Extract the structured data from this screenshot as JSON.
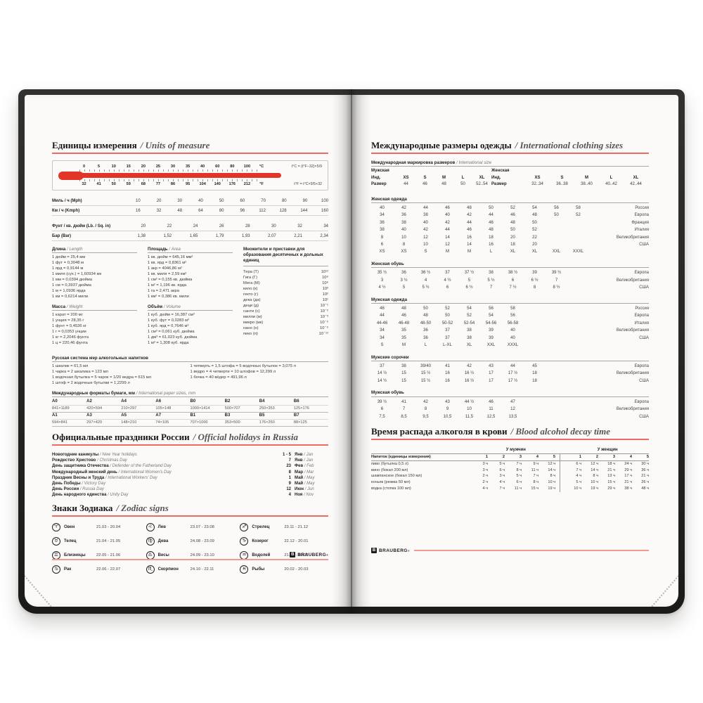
{
  "brand": {
    "name": "BRAUBERG",
    "mark": "B",
    "reg": "®"
  },
  "left_page": {
    "units": {
      "title_ru": "Единицы измерения",
      "title_en": "/ Units of measure",
      "thermometer": {
        "c_values": [
          "0",
          "5",
          "10",
          "15",
          "20",
          "25",
          "30",
          "35",
          "40",
          "60",
          "80",
          "100"
        ],
        "c_unit": "°C",
        "c_formula": "t°C = (t°F−32)×5/9",
        "f_values": [
          "32",
          "41",
          "50",
          "59",
          "68",
          "77",
          "86",
          "95",
          "104",
          "140",
          "176",
          "212"
        ],
        "f_unit": "°F",
        "f_formula": "t°F = t°C×9/5+32"
      },
      "speed_table": [
        {
          "label": "Миль / ч (Mph)",
          "values": [
            "10",
            "20",
            "30",
            "40",
            "50",
            "60",
            "70",
            "80",
            "90",
            "100"
          ]
        },
        {
          "label": "Км / ч (Kmph)",
          "values": [
            "16",
            "32",
            "48",
            "64",
            "80",
            "96",
            "112",
            "128",
            "144",
            "160"
          ]
        }
      ],
      "pressure_table": [
        {
          "label": "Фунт / кв. дюйм (Lb. / Sq. in)",
          "values": [
            "20",
            "22",
            "24",
            "26",
            "28",
            "30",
            "32",
            "34"
          ]
        },
        {
          "label": "Бар (Bar)",
          "values": [
            "1,38",
            "1,52",
            "1,65",
            "1,79",
            "1,93",
            "2,07",
            "2,21",
            "2,34"
          ]
        }
      ],
      "length": {
        "title_ru": "Длина",
        "title_en": "/ Length",
        "items": [
          "1 дюйм = 25,4 мм",
          "1 фут = 0,3048 м",
          "1 ярд = 0,9144 м",
          "1 миля (сух.) = 1,60934 км",
          "1 мм = 0,0394 дюйма",
          "1 см = 0,3937 дюйма",
          "1 м = 1,0936 ярда",
          "1 км = 0,6214 мили"
        ]
      },
      "area": {
        "title_ru": "Площадь",
        "title_en": "/ Area",
        "items": [
          "1 кв. дюйм = 645,16 мм²",
          "1 кв. ярд = 0,8361 м²",
          "1 акр = 4046,86 м²",
          "1 кв. миля = 2,59 км²",
          "1 см² = 0,155 кв. дюйма",
          "1 м² = 1,196 кв. ярда",
          "1 га = 2,471 акра",
          "1 км² = 0,386 кв. мили"
        ]
      },
      "weight": {
        "title_ru": "Масса",
        "title_en": "/ Weight",
        "items": [
          "1 карат = 200 мг",
          "1 унция = 28,35 г",
          "1 фунт = 0,4536 кг",
          "1 г = 0,0353 унции",
          "1 кг = 2,2046 фунта",
          "1 ц = 220,46 фунта"
        ]
      },
      "volume": {
        "title_ru": "Объём",
        "title_en": "/ Volume",
        "items": [
          "1 куб. дюйм = 16,387 см³",
          "1 куб. фут = 0,0283 м³",
          "1 куб. ярд = 0,7646 м³",
          "1 см³ = 0,061 куб. дюйма",
          "1 дм³ = 61,023 куб. дюйма",
          "1 м³ = 1,308 куб. ярда"
        ]
      },
      "prefixes": {
        "title": "Множители и приставки для образования десятичных и дольных единиц",
        "items": [
          {
            "n": "Тера (Т)",
            "v": "10¹²"
          },
          {
            "n": "Гига (Г)",
            "v": "10⁹"
          },
          {
            "n": "Мега (М)",
            "v": "10⁶"
          },
          {
            "n": "кило (к)",
            "v": "10³"
          },
          {
            "n": "гекто (г)",
            "v": "10²"
          },
          {
            "n": "дека (да)",
            "v": "10¹"
          },
          {
            "n": "деци (д)",
            "v": "10⁻¹"
          },
          {
            "n": "санти (с)",
            "v": "10⁻²"
          },
          {
            "n": "милли (м)",
            "v": "10⁻³"
          },
          {
            "n": "микро (мк)",
            "v": "10⁻⁶"
          },
          {
            "n": "нано (н)",
            "v": "10⁻⁹"
          },
          {
            "n": "пико (п)",
            "v": "10⁻¹²"
          }
        ]
      },
      "russian_measures": {
        "title": "Русская система мер алкогольных напитков",
        "col1": [
          "1 шкалик = 61,5 мл",
          "1 чарка = 2 шкалика = 123 мл",
          "1 водочная бутылка = 5 чарок = 1/20 ведра = 615 мл",
          "1 штоф = 2 водочные бутылки = 1,2299 л"
        ],
        "col2": [
          "1 четверть = 1,5 штофа = 5 водочных бутылок = 3,075 л",
          "1 ведро = 4 четверти = 10 штофов = 12,299 л",
          "1 бочка = 40 вёдер = 491,96 л"
        ]
      },
      "paper": {
        "title_ru": "Международные форматы бумаги, мм",
        "title_en": "/ International paper sizes, mm",
        "rows": [
          [
            {
              "n": "A0",
              "s": "841×1189"
            },
            {
              "n": "A2",
              "s": "420×594"
            },
            {
              "n": "A4",
              "s": "210×297"
            },
            {
              "n": "A6",
              "s": "105×148"
            },
            {
              "n": "B0",
              "s": "1000×1414"
            },
            {
              "n": "B2",
              "s": "500×707"
            },
            {
              "n": "B4",
              "s": "250×353"
            },
            {
              "n": "B6",
              "s": "125×176"
            }
          ],
          [
            {
              "n": "A1",
              "s": "594×841"
            },
            {
              "n": "A3",
              "s": "297×420"
            },
            {
              "n": "A5",
              "s": "148×210"
            },
            {
              "n": "A7",
              "s": "74×105"
            },
            {
              "n": "B1",
              "s": "707×1000"
            },
            {
              "n": "B3",
              "s": "353×500"
            },
            {
              "n": "B5",
              "s": "176×250"
            },
            {
              "n": "B7",
              "s": "88×125"
            }
          ]
        ]
      }
    },
    "holidays": {
      "title_ru": "Официальные праздники России",
      "title_en": "/ Official holidays in Russia",
      "items": [
        {
          "ru": "Новогодние каникулы",
          "en": "/ New Year holidays",
          "date": "1 - 5",
          "m_ru": "Янв",
          "m_en": "/ Jan"
        },
        {
          "ru": "Рождество Христово",
          "en": "/ Christmas Day",
          "date": "7",
          "m_ru": "Янв",
          "m_en": "/ Jan"
        },
        {
          "ru": "День защитника Отечества",
          "en": "/ Defender of the Fatherland Day",
          "date": "23",
          "m_ru": "Фев",
          "m_en": "/ Feb"
        },
        {
          "ru": "Международный женский день",
          "en": "/ International Women's Day",
          "date": "8",
          "m_ru": "Мар",
          "m_en": "/ Mar"
        },
        {
          "ru": "Праздник Весны и Труда",
          "en": "/ International Workers' Day",
          "date": "1",
          "m_ru": "Май",
          "m_en": "/ May"
        },
        {
          "ru": "День Победы",
          "en": "/ Victory Day",
          "date": "9",
          "m_ru": "Май",
          "m_en": "/ May"
        },
        {
          "ru": "День России",
          "en": "/ Russia Day",
          "date": "12",
          "m_ru": "Июн",
          "m_en": "/ Jun"
        },
        {
          "ru": "День народного единства",
          "en": "/ Unity Day",
          "date": "4",
          "m_ru": "Ноя",
          "m_en": "/ Nov"
        }
      ]
    },
    "zodiac": {
      "title_ru": "Знаки Зодиака",
      "title_en": "/ Zodiac signs",
      "entries": [
        {
          "symbol": "♈",
          "name": "Овен",
          "dates": "21.03 - 20.04"
        },
        {
          "symbol": "♌",
          "name": "Лев",
          "dates": "23.07 - 23.08"
        },
        {
          "symbol": "♐",
          "name": "Стрелец",
          "dates": "23.11 - 21.12"
        },
        {
          "symbol": "♉",
          "name": "Телец",
          "dates": "21.04 - 21.05"
        },
        {
          "symbol": "♍",
          "name": "Дева",
          "dates": "24.08 - 23.09"
        },
        {
          "symbol": "♑",
          "name": "Козерог",
          "dates": "22.12 - 20.01"
        },
        {
          "symbol": "♊",
          "name": "Близнецы",
          "dates": "22.05 - 21.06"
        },
        {
          "symbol": "♎",
          "name": "Весы",
          "dates": "24.09 - 23.10"
        },
        {
          "symbol": "♒",
          "name": "Водолей",
          "dates": "21.01 - 19.02"
        },
        {
          "symbol": "♋",
          "name": "Рак",
          "dates": "22.06 - 22.07"
        },
        {
          "symbol": "♏",
          "name": "Скорпион",
          "dates": "24.10 - 22.11"
        },
        {
          "symbol": "♓",
          "name": "Рыбы",
          "dates": "20.02 - 20.03"
        }
      ]
    }
  },
  "right_page": {
    "sizes_title_ru": "Международные размеры одежды",
    "sizes_title_en": "/ International clothing sizes",
    "marking": {
      "title_ru": "Международная маркировка размеров",
      "title_en": "/ International size",
      "men": {
        "header": "Мужская",
        "ind_label": "Инд.",
        "ind": [
          "XS",
          "S",
          "M",
          "L",
          "XL"
        ],
        "size_label": "Размер",
        "sizes": [
          "44",
          "46",
          "48",
          "50",
          "52..54"
        ]
      },
      "women": {
        "header": "Женская",
        "ind_label": "Инд.",
        "ind": [
          "XS",
          "S",
          "M",
          "L",
          "XL"
        ],
        "size_label": "Размер",
        "sizes": [
          "32..34",
          "36..38",
          "38..40",
          "40..42",
          "42..44"
        ]
      }
    },
    "size_tables": [
      {
        "title": "Женская одежда",
        "rows": [
          {
            "cells": [
              "40",
              "42",
              "44",
              "46",
              "48",
              "50",
              "52",
              "54",
              "56",
              "58"
            ],
            "label": "Россия"
          },
          {
            "cells": [
              "34",
              "36",
              "38",
              "40",
              "42",
              "44",
              "46",
              "48",
              "50",
              "52"
            ],
            "label": "Европа"
          },
          {
            "cells": [
              "36",
              "38",
              "40",
              "42",
              "44",
              "46",
              "48",
              "50"
            ],
            "label": "Франция"
          },
          {
            "cells": [
              "38",
              "40",
              "42",
              "44",
              "46",
              "48",
              "50",
              "52"
            ],
            "label": "Италия"
          },
          {
            "cells": [
              "8",
              "10",
              "12",
              "14",
              "16",
              "18",
              "20",
              "22"
            ],
            "label": "Великобритания"
          },
          {
            "cells": [
              "6",
              "8",
              "10",
              "12",
              "14",
              "16",
              "18",
              "20"
            ],
            "label": "США"
          },
          {
            "cells": [
              "XS",
              "XS",
              "S",
              "M",
              "M",
              "L",
              "XL",
              "XL",
              "XXL",
              "XXXL"
            ],
            "label": ""
          }
        ]
      },
      {
        "title": "Женская обувь",
        "rows": [
          {
            "cells": [
              "35 ½",
              "36",
              "36 ½",
              "37",
              "37 ½",
              "38",
              "38 ½",
              "39",
              "39 ½"
            ],
            "label": "Европа"
          },
          {
            "cells": [
              "3",
              "3 ½",
              "4",
              "4 ½",
              "5",
              "5 ½",
              "6",
              "6 ½",
              "7"
            ],
            "label": "Великобритания"
          },
          {
            "cells": [
              "4 ½",
              "5",
              "5 ½",
              "6",
              "6 ½",
              "7",
              "7 ½",
              "8",
              "8 ½"
            ],
            "label": "США"
          }
        ]
      },
      {
        "title": "Мужская одежда",
        "rows": [
          {
            "cells": [
              "46",
              "48",
              "50",
              "52",
              "54",
              "56",
              "58"
            ],
            "label": "Россия"
          },
          {
            "cells": [
              "44",
              "46",
              "48",
              "50",
              "52",
              "54",
              "56"
            ],
            "label": "Европа"
          },
          {
            "cells": [
              "44-46",
              "46-48",
              "48-50",
              "50-52",
              "52-54",
              "54-56",
              "56-58"
            ],
            "label": "Италия"
          },
          {
            "cells": [
              "34",
              "35",
              "36",
              "37",
              "38",
              "39",
              "40"
            ],
            "label": "Великобритания"
          },
          {
            "cells": [
              "34",
              "35",
              "36",
              "37",
              "38",
              "39",
              "40"
            ],
            "label": "США"
          },
          {
            "cells": [
              "S",
              "M",
              "L",
              "L-XL",
              "XL",
              "XXL",
              "XXXL"
            ],
            "label": ""
          }
        ]
      },
      {
        "title": "Мужские сорочки",
        "rows": [
          {
            "cells": [
              "37",
              "38",
              "39/40",
              "41",
              "42",
              "43",
              "44",
              "45"
            ],
            "label": "Европа"
          },
          {
            "cells": [
              "14 ½",
              "15",
              "15 ½",
              "16",
              "16 ½",
              "17",
              "17 ½",
              "18"
            ],
            "label": "Великобритания"
          },
          {
            "cells": [
              "14 ½",
              "15",
              "15 ½",
              "16",
              "16 ½",
              "17",
              "17 ½",
              "18"
            ],
            "label": "США"
          }
        ]
      },
      {
        "title": "Мужская обувь",
        "rows": [
          {
            "cells": [
              "39 ½",
              "41",
              "42",
              "43",
              "44 ½",
              "46",
              "47"
            ],
            "label": "Европа"
          },
          {
            "cells": [
              "6",
              "7",
              "8",
              "9",
              "10",
              "11",
              "12"
            ],
            "label": "Великобритания"
          },
          {
            "cells": [
              "7,5",
              "8,5",
              "9,5",
              "10,5",
              "11,5",
              "12,5",
              "13,5"
            ],
            "label": "США"
          }
        ]
      }
    ],
    "alcohol": {
      "title_ru": "Время распада алкоголя в крови",
      "title_en": "/ Blood alcohol decay time",
      "men_header": "У мужчин",
      "women_header": "У женщин",
      "drink_header": "Напиток (единицы измерения)",
      "count_cols": [
        "1",
        "2",
        "3",
        "4",
        "5"
      ],
      "rows": [
        {
          "drink": "пиво (бутылка 0,5 л)",
          "men": [
            "3 ч",
            "5 ч",
            "7 ч",
            "9 ч",
            "12 ч"
          ],
          "women": [
            "6 ч",
            "12 ч",
            "18 ч",
            "24 ч",
            "30 ч"
          ]
        },
        {
          "drink": "вино (бокал 200 мл)",
          "men": [
            "3 ч",
            "6 ч",
            "8 ч",
            "11 ч",
            "14 ч"
          ],
          "women": [
            "7 ч",
            "14 ч",
            "21 ч",
            "29 ч",
            "36 ч"
          ]
        },
        {
          "drink": "шампанское (бокал 150 мл)",
          "men": [
            "2 ч",
            "3 ч",
            "5 ч",
            "7 ч",
            "8 ч"
          ],
          "women": [
            "4 ч",
            "8 ч",
            "13 ч",
            "17 ч",
            "21 ч"
          ]
        },
        {
          "drink": "коньяк (рюмка 50 мл)",
          "men": [
            "2 ч",
            "4 ч",
            "6 ч",
            "8 ч",
            "10 ч"
          ],
          "women": [
            "5 ч",
            "10 ч",
            "15 ч",
            "21 ч",
            "26 ч"
          ]
        },
        {
          "drink": "водка (стопка 100 мл)",
          "men": [
            "4 ч",
            "7 ч",
            "11 ч",
            "15 ч",
            "19 ч"
          ],
          "women": [
            "10 ч",
            "19 ч",
            "29 ч",
            "38 ч",
            "48 ч"
          ]
        }
      ]
    }
  }
}
